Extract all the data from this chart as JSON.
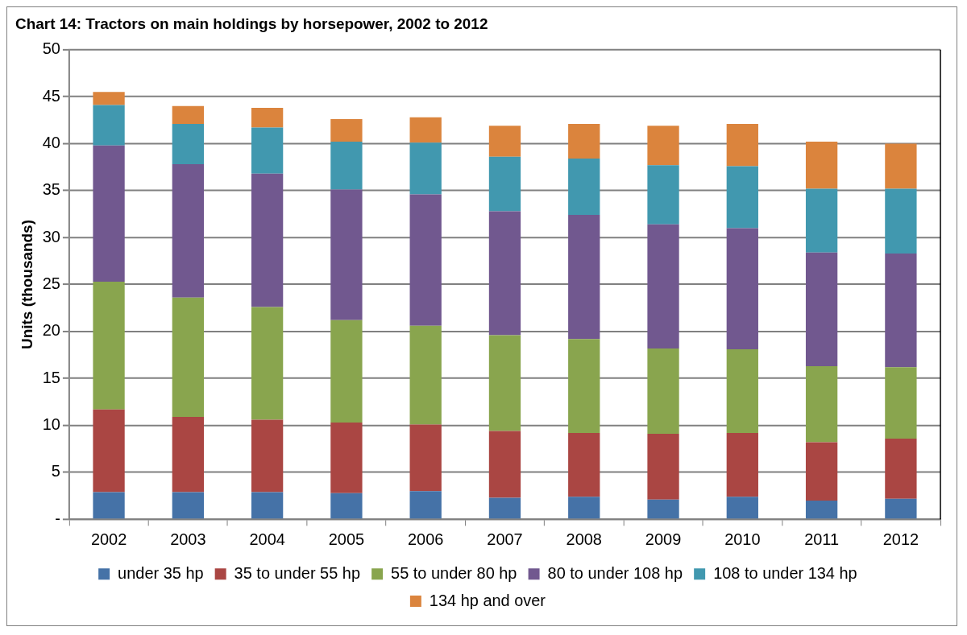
{
  "chart_data": {
    "type": "bar",
    "title": "Chart 14: Tractors on main holdings by horsepower, 2002 to 2012",
    "ylabel": "Units (thousands)",
    "categories": [
      "2002",
      "2003",
      "2004",
      "2005",
      "2006",
      "2007",
      "2008",
      "2009",
      "2010",
      "2011",
      "2012"
    ],
    "stacked": true,
    "ylim": [
      0,
      50
    ],
    "yticks": [
      {
        "value": 0,
        "label": "-"
      },
      5,
      10,
      15,
      20,
      25,
      30,
      35,
      40,
      45,
      50
    ],
    "grid": "y",
    "legend": "bottom",
    "series": [
      {
        "name": "under 35 hp",
        "color": "#4572a7",
        "values": [
          2.9,
          2.9,
          2.9,
          2.8,
          3.0,
          2.3,
          2.4,
          2.1,
          2.4,
          2.0,
          2.2
        ]
      },
      {
        "name": "35 to under 55 hp",
        "color": "#aa4643",
        "values": [
          8.8,
          8.0,
          7.7,
          7.5,
          7.1,
          7.1,
          6.8,
          7.0,
          6.8,
          6.2,
          6.4
        ]
      },
      {
        "name": "55 to under 80 hp",
        "color": "#89a54e",
        "values": [
          13.6,
          12.7,
          12.0,
          10.9,
          10.5,
          10.2,
          10.0,
          9.1,
          8.9,
          8.1,
          7.6
        ]
      },
      {
        "name": "80 to under 108 hp",
        "color": "#71588f",
        "values": [
          14.5,
          14.2,
          14.2,
          13.9,
          14.0,
          13.2,
          13.2,
          13.2,
          12.9,
          12.1,
          12.1
        ]
      },
      {
        "name": "108 to under 134 hp",
        "color": "#4198af",
        "values": [
          4.3,
          4.3,
          4.9,
          5.1,
          5.5,
          5.8,
          6.0,
          6.3,
          6.6,
          6.8,
          6.9
        ]
      },
      {
        "name": "134 hp and over",
        "color": "#db843d",
        "values": [
          1.4,
          1.9,
          2.1,
          2.4,
          2.7,
          3.3,
          3.7,
          4.2,
          4.5,
          5.0,
          4.8
        ]
      }
    ]
  }
}
